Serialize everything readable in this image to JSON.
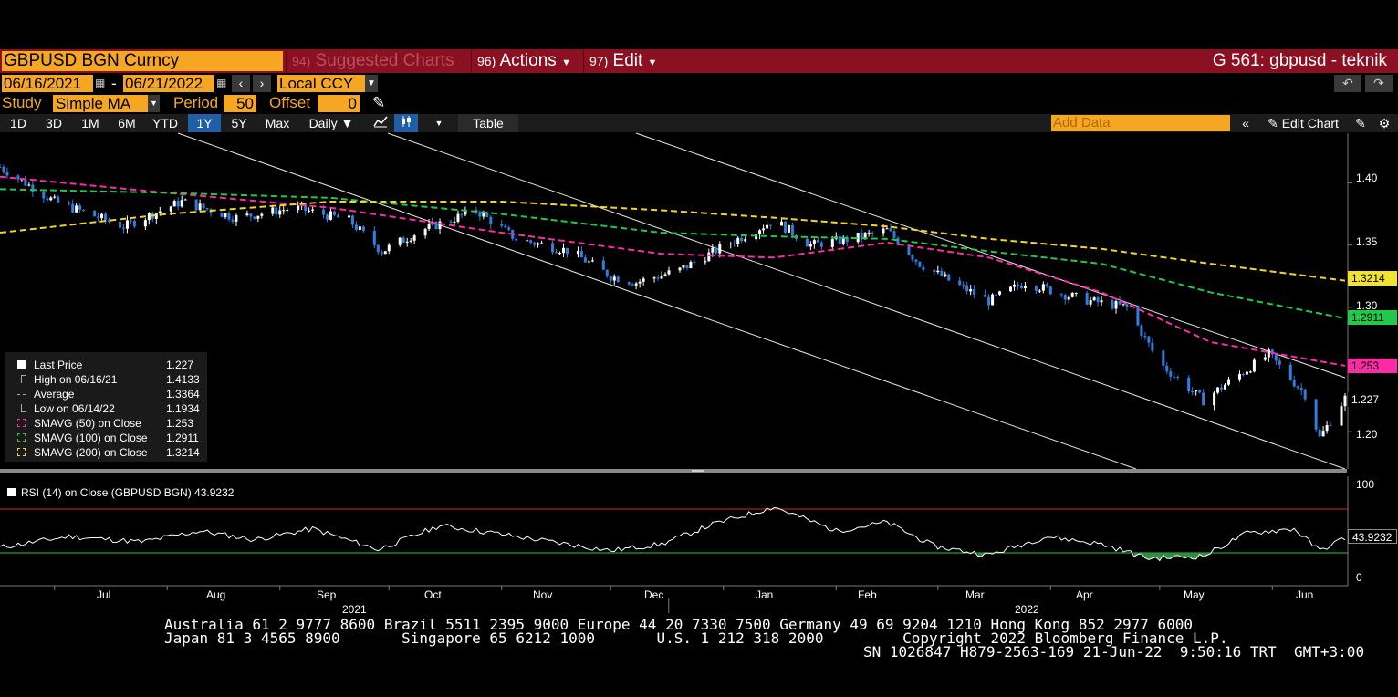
{
  "header": {
    "ticker": "GBPUSD BGN Curncy",
    "suggested_num": "94)",
    "suggested_label": "Suggested Charts",
    "actions_num": "96)",
    "actions_label": "Actions",
    "edit_num": "97)",
    "edit_label": "Edit",
    "page_title": "G 561: gbpusd - teknik"
  },
  "range": {
    "start": "06/16/2021",
    "sep": "-",
    "end": "06/21/2022",
    "currency": "Local CCY"
  },
  "study": {
    "label": "Study",
    "value": "Simple MA",
    "period_label": "Period",
    "period_value": "50",
    "offset_label": "Offset",
    "offset_value": "0"
  },
  "timeframes": [
    "1D",
    "3D",
    "1M",
    "6M",
    "YTD",
    "1Y",
    "5Y",
    "Max"
  ],
  "active_timeframe": "1Y",
  "frequency": "Daily ▼",
  "table_label": "Table",
  "add_data_placeholder": "Add Data",
  "edit_chart_label": "Edit Chart",
  "legend": [
    {
      "name": "Last Price",
      "value": "1.227",
      "icon": "square-white",
      "color": "#ffffff"
    },
    {
      "name": "High on 06/16/21",
      "value": "1.4133",
      "icon": "high-marker",
      "color": "#aaaaaa"
    },
    {
      "name": "Average",
      "value": "1.3364",
      "icon": "average-marker",
      "color": "#aaaaaa"
    },
    {
      "name": "Low on 06/14/22",
      "value": "1.1934",
      "icon": "low-marker",
      "color": "#aaaaaa"
    },
    {
      "name": "SMAVG (50)  on Close",
      "value": "1.253",
      "icon": "dash-magenta",
      "color": "#ff2aa8"
    },
    {
      "name": "SMAVG (100)  on Close",
      "value": "1.2911",
      "icon": "dash-green",
      "color": "#22c84a"
    },
    {
      "name": "SMAVG (200)  on Close",
      "value": "1.3214",
      "icon": "dash-yellow",
      "color": "#f2d52c"
    }
  ],
  "price_axis": {
    "ticks": [
      "1.40",
      "1.35",
      "1.30",
      "1.25",
      "1.20"
    ]
  },
  "price_tags": [
    {
      "value": "1.3214",
      "bg": "#f2e42c",
      "fg": "#000000"
    },
    {
      "value": "1.2911",
      "bg": "#22c84a",
      "fg": "#000000"
    },
    {
      "value": "1.253",
      "bg": "#ff2aa8",
      "fg": "#000000"
    },
    {
      "value": "1.227",
      "bg": "#000000",
      "fg": "#ffffff"
    }
  ],
  "rsi": {
    "label": "RSI (14)   on Close (GBPUSD BGN) 43.9232",
    "ticks": [
      "100",
      "0"
    ],
    "tag": "43.9232"
  },
  "x_axis": {
    "months": [
      "Jul",
      "Aug",
      "Sep",
      "Oct",
      "Nov",
      "Dec",
      "Jan",
      "Feb",
      "Mar",
      "Apr",
      "May",
      "Jun"
    ],
    "years": [
      "2021",
      "2022"
    ]
  },
  "footer": {
    "line1": "Australia 61 2 9777 8600 Brazil 5511 2395 9000 Europe 44 20 7330 7500 Germany 49 69 9204 1210 Hong Kong 852 2977 6000",
    "line2": "Japan 81 3 4565 8900       Singapore 65 6212 1000       U.S. 1 212 318 2000         Copyright 2022 Bloomberg Finance L.P.",
    "line3": "SN 1026847 H879-2563-169 21-Jun-22  9:50:16 TRT  GMT+3:00"
  },
  "chart_data": {
    "type": "line",
    "x_start": "2021-06-16",
    "x_end": "2022-06-21",
    "ylim": [
      1.17,
      1.44
    ],
    "price_series": {
      "name": "Last Price",
      "x": [
        "2021-06-16",
        "2021-07-01",
        "2021-07-20",
        "2021-08-05",
        "2021-08-20",
        "2021-09-05",
        "2021-09-20",
        "2021-09-29",
        "2021-10-10",
        "2021-10-25",
        "2021-11-05",
        "2021-11-20",
        "2021-12-01",
        "2021-12-08",
        "2021-12-20",
        "2022-01-05",
        "2022-01-15",
        "2022-01-25",
        "2022-02-05",
        "2022-02-15",
        "2022-02-24",
        "2022-03-05",
        "2022-03-15",
        "2022-03-25",
        "2022-04-05",
        "2022-04-12",
        "2022-04-22",
        "2022-05-01",
        "2022-05-13",
        "2022-05-20",
        "2022-05-31",
        "2022-06-10",
        "2022-06-14",
        "2022-06-21"
      ],
      "values": [
        1.413,
        1.385,
        1.365,
        1.385,
        1.372,
        1.38,
        1.37,
        1.345,
        1.362,
        1.378,
        1.355,
        1.345,
        1.325,
        1.32,
        1.33,
        1.355,
        1.37,
        1.35,
        1.355,
        1.362,
        1.335,
        1.32,
        1.305,
        1.32,
        1.31,
        1.305,
        1.3,
        1.255,
        1.225,
        1.24,
        1.262,
        1.23,
        1.195,
        1.227
      ]
    },
    "series": [
      {
        "name": "SMAVG (50)",
        "color": "#ff2aa8",
        "x": [
          "2021-06-16",
          "2021-08-01",
          "2021-09-15",
          "2021-11-01",
          "2021-12-15",
          "2022-01-15",
          "2022-02-15",
          "2022-03-15",
          "2022-04-15",
          "2022-05-15",
          "2022-06-21"
        ],
        "values": [
          1.405,
          1.392,
          1.38,
          1.36,
          1.343,
          1.34,
          1.352,
          1.34,
          1.312,
          1.272,
          1.253
        ]
      },
      {
        "name": "SMAVG (100)",
        "color": "#22c84a",
        "x": [
          "2021-06-16",
          "2021-08-01",
          "2021-09-15",
          "2021-11-01",
          "2021-12-15",
          "2022-01-15",
          "2022-02-15",
          "2022-03-15",
          "2022-04-15",
          "2022-05-15",
          "2022-06-21"
        ],
        "values": [
          1.395,
          1.392,
          1.388,
          1.375,
          1.36,
          1.357,
          1.355,
          1.345,
          1.335,
          1.312,
          1.2911
        ]
      },
      {
        "name": "SMAVG (200)",
        "color": "#f2d52c",
        "x": [
          "2021-06-16",
          "2021-08-01",
          "2021-09-15",
          "2021-11-01",
          "2021-12-15",
          "2022-01-15",
          "2022-02-15",
          "2022-03-15",
          "2022-04-15",
          "2022-05-15",
          "2022-06-21"
        ],
        "values": [
          1.36,
          1.375,
          1.385,
          1.385,
          1.378,
          1.372,
          1.365,
          1.355,
          1.347,
          1.335,
          1.3214
        ]
      }
    ],
    "rsi": {
      "name": "RSI (14)",
      "ylim": [
        0,
        100
      ],
      "upper": 70,
      "lower": 30,
      "x": [
        "2021-06-16",
        "2021-07-05",
        "2021-07-25",
        "2021-08-10",
        "2021-08-25",
        "2021-09-10",
        "2021-09-28",
        "2021-10-15",
        "2021-10-30",
        "2021-11-15",
        "2021-12-01",
        "2021-12-15",
        "2021-12-29",
        "2022-01-15",
        "2022-02-01",
        "2022-02-15",
        "2022-02-28",
        "2022-03-15",
        "2022-03-31",
        "2022-04-15",
        "2022-04-28",
        "2022-05-13",
        "2022-05-25",
        "2022-06-07",
        "2022-06-14",
        "2022-06-21"
      ],
      "values": [
        35,
        45,
        40,
        50,
        42,
        52,
        33,
        55,
        48,
        40,
        32,
        38,
        56,
        72,
        50,
        58,
        36,
        28,
        45,
        38,
        25,
        27,
        48,
        52,
        32,
        43.92
      ]
    }
  }
}
